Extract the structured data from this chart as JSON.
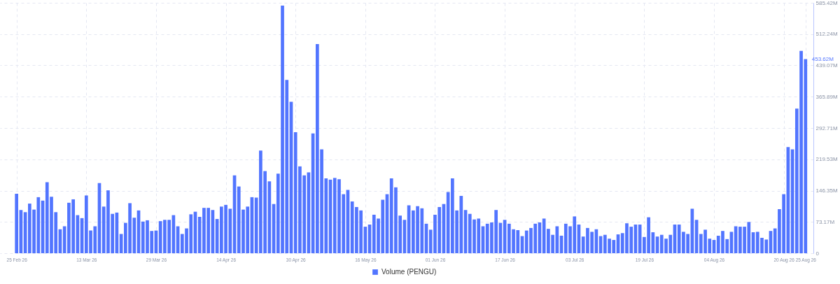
{
  "chart_data": {
    "type": "bar",
    "x": [
      "2026-02-25",
      "2026-02-26",
      "2026-02-27",
      "2026-02-28",
      "2026-03-01",
      "2026-03-02",
      "2026-03-03",
      "2026-03-04",
      "2026-03-05",
      "2026-03-06",
      "2026-03-07",
      "2026-03-08",
      "2026-03-09",
      "2026-03-10",
      "2026-03-11",
      "2026-03-12",
      "2026-03-13",
      "2026-03-14",
      "2026-03-15",
      "2026-03-16",
      "2026-03-17",
      "2026-03-18",
      "2026-03-19",
      "2026-03-20",
      "2026-03-21",
      "2026-03-22",
      "2026-03-23",
      "2026-03-24",
      "2026-03-25",
      "2026-03-26",
      "2026-03-27",
      "2026-03-28",
      "2026-03-29",
      "2026-03-30",
      "2026-03-31",
      "2026-04-01",
      "2026-04-02",
      "2026-04-03",
      "2026-04-04",
      "2026-04-05",
      "2026-04-06",
      "2026-04-07",
      "2026-04-08",
      "2026-04-09",
      "2026-04-10",
      "2026-04-11",
      "2026-04-12",
      "2026-04-13",
      "2026-04-14",
      "2026-04-15",
      "2026-04-16",
      "2026-04-17",
      "2026-04-18",
      "2026-04-19",
      "2026-04-20",
      "2026-04-21",
      "2026-04-22",
      "2026-04-23",
      "2026-04-24",
      "2026-04-25",
      "2026-04-26",
      "2026-04-27",
      "2026-04-28",
      "2026-04-29",
      "2026-04-30",
      "2026-05-01",
      "2026-05-02",
      "2026-05-03",
      "2026-05-04",
      "2026-05-05",
      "2026-05-06",
      "2026-05-07",
      "2026-05-08",
      "2026-05-09",
      "2026-05-10",
      "2026-05-11",
      "2026-05-12",
      "2026-05-13",
      "2026-05-14",
      "2026-05-15",
      "2026-05-16",
      "2026-05-17",
      "2026-05-18",
      "2026-05-19",
      "2026-05-20",
      "2026-05-21",
      "2026-05-22",
      "2026-05-23",
      "2026-05-24",
      "2026-05-25",
      "2026-05-26",
      "2026-05-27",
      "2026-05-28",
      "2026-05-29",
      "2026-05-30",
      "2026-05-31",
      "2026-06-01",
      "2026-06-02",
      "2026-06-03",
      "2026-06-04",
      "2026-06-05",
      "2026-06-06",
      "2026-06-07",
      "2026-06-08",
      "2026-06-09",
      "2026-06-10",
      "2026-06-11",
      "2026-06-12",
      "2026-06-13",
      "2026-06-14",
      "2026-06-15",
      "2026-06-16",
      "2026-06-17",
      "2026-06-18",
      "2026-06-19",
      "2026-06-20",
      "2026-06-21",
      "2026-06-22",
      "2026-06-23",
      "2026-06-24",
      "2026-06-25",
      "2026-06-26",
      "2026-06-27",
      "2026-06-28",
      "2026-06-29",
      "2026-06-30",
      "2026-07-01",
      "2026-07-02",
      "2026-07-03",
      "2026-07-04",
      "2026-07-05",
      "2026-07-06",
      "2026-07-07",
      "2026-07-08",
      "2026-07-09",
      "2026-07-10",
      "2026-07-11",
      "2026-07-12",
      "2026-07-13",
      "2026-07-14",
      "2026-07-15",
      "2026-07-16",
      "2026-07-17",
      "2026-07-18",
      "2026-07-19",
      "2026-07-20",
      "2026-07-21",
      "2026-07-22",
      "2026-07-23",
      "2026-07-24",
      "2026-07-25",
      "2026-07-26",
      "2026-07-27",
      "2026-07-28",
      "2026-07-29",
      "2026-07-30",
      "2026-07-31",
      "2026-08-01",
      "2026-08-02",
      "2026-08-03",
      "2026-08-04",
      "2026-08-05",
      "2026-08-06",
      "2026-08-07",
      "2026-08-08",
      "2026-08-09",
      "2026-08-10",
      "2026-08-11",
      "2026-08-12",
      "2026-08-13",
      "2026-08-14",
      "2026-08-15",
      "2026-08-16",
      "2026-08-17",
      "2026-08-18",
      "2026-08-19",
      "2026-08-20",
      "2026-08-21",
      "2026-08-22",
      "2026-08-23",
      "2026-08-24",
      "2026-08-25"
    ],
    "series": [
      {
        "name": "Volume (PENGU)",
        "color": "#5275ff",
        "values": [
          139,
          101,
          96,
          116,
          102,
          131,
          123,
          166,
          132,
          96,
          56,
          63,
          118,
          126,
          89,
          82,
          135,
          53,
          63,
          164,
          109,
          147,
          92,
          95,
          45,
          71,
          117,
          83,
          100,
          74,
          77,
          52,
          53,
          75,
          78,
          78,
          89,
          63,
          45,
          58,
          91,
          97,
          85,
          106,
          106,
          101,
          80,
          109,
          113,
          104,
          182,
          156,
          102,
          109,
          131,
          130,
          240,
          192,
          168,
          115,
          186,
          579,
          405,
          354,
          283,
          203,
          182,
          189,
          280,
          489,
          243,
          175,
          172,
          176,
          173,
          138,
          148,
          121,
          108,
          100,
          62,
          67,
          90,
          81,
          125,
          138,
          175,
          154,
          88,
          78,
          112,
          100,
          110,
          105,
          69,
          55,
          90,
          108,
          115,
          143,
          175,
          100,
          134,
          101,
          92,
          79,
          81,
          63,
          69,
          72,
          101,
          71,
          78,
          69,
          56,
          54,
          40,
          53,
          59,
          69,
          72,
          81,
          57,
          43,
          63,
          41,
          69,
          63,
          86,
          67,
          39,
          59,
          50,
          56,
          40,
          43,
          34,
          31,
          44,
          47,
          70,
          62,
          67,
          67,
          38,
          84,
          49,
          39,
          43,
          34,
          43,
          67,
          67,
          50,
          45,
          104,
          78,
          45,
          55,
          34,
          31,
          41,
          52,
          33,
          50,
          63,
          62,
          62,
          73,
          49,
          50,
          36,
          32,
          52,
          58,
          103,
          138,
          248,
          243,
          338,
          473,
          453.62
        ]
      }
    ],
    "xlim": [
      "2026-02-22",
      "2026-08-26"
    ],
    "xticks": [
      {
        "value": "2026-02-25",
        "label": "25 Feb 26"
      },
      {
        "value": "2026-03-13",
        "label": "13 Mar 26"
      },
      {
        "value": "2026-03-29",
        "label": "29 Mar 26"
      },
      {
        "value": "2026-04-14",
        "label": "14 Apr 26"
      },
      {
        "value": "2026-04-30",
        "label": "30 Apr 26"
      },
      {
        "value": "2026-05-16",
        "label": "16 May 26"
      },
      {
        "value": "2026-06-01",
        "label": "01 Jun 26"
      },
      {
        "value": "2026-06-17",
        "label": "17 Jun 26"
      },
      {
        "value": "2026-07-03",
        "label": "03 Jul 26"
      },
      {
        "value": "2026-07-19",
        "label": "19 Jul 26"
      },
      {
        "value": "2026-08-04",
        "label": "04 Aug 26"
      },
      {
        "value": "2026-08-20",
        "label": "20 Aug 26"
      },
      {
        "value": "2026-08-25",
        "label": "25 Aug 26"
      }
    ],
    "ylim": [
      0,
      585.42
    ],
    "yticks": [
      0,
      {
        "value": 73.17,
        "label": "73.17M"
      },
      {
        "value": 146.35,
        "label": "146.35M"
      },
      {
        "value": 219.53,
        "label": "219.53M"
      },
      {
        "value": 292.71,
        "label": "292.71M"
      },
      {
        "value": 365.89,
        "label": "365.89M"
      },
      {
        "value": 439.07,
        "label": "439.07M"
      },
      {
        "value": 512.24,
        "label": "512.24M"
      },
      {
        "value": 585.42,
        "label": "585.42M"
      }
    ],
    "annotations": [
      {
        "text": "453.62M",
        "x": "2026-08-25",
        "y": 453.62
      }
    ],
    "grid": true,
    "legend": "bottom"
  }
}
